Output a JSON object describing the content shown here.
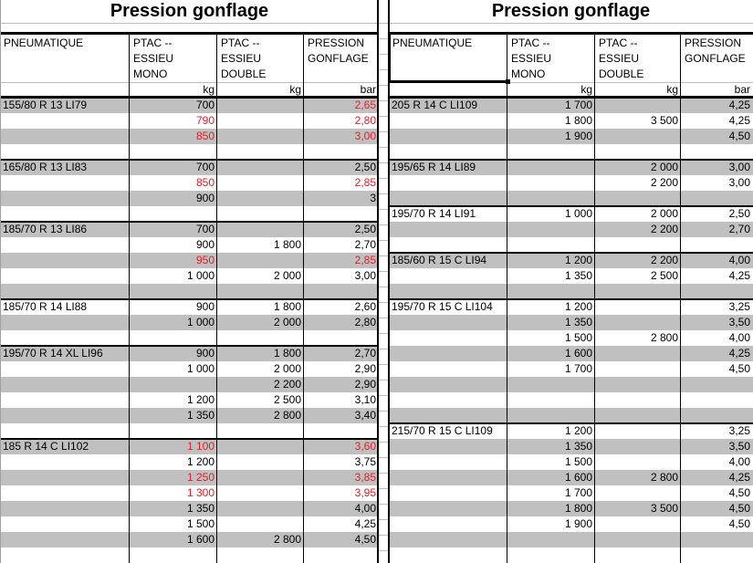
{
  "colors": {
    "row_gray": "#c0c0c0",
    "highlight_red": "#e0202a"
  },
  "left": {
    "title": "Pression gonflage",
    "headers": [
      "PNEUMATIQUE",
      "PTAC  --\nESSIEU\nMONO",
      "PTAC  --\nESSIEU\nDOUBLE",
      "PRESSION\nGONFLAGE"
    ],
    "units": [
      "",
      "kg",
      "kg",
      "bar"
    ],
    "rows": [
      {
        "tire": "155/80 R 13 LI79",
        "mono": "700",
        "double": "",
        "pressure": "2,65",
        "red": [
          "pressure"
        ],
        "group_start": true
      },
      {
        "tire": "",
        "mono": "790",
        "double": "",
        "pressure": "2,80",
        "red": [
          "mono",
          "pressure"
        ]
      },
      {
        "tire": "",
        "mono": "850",
        "double": "",
        "pressure": "3,00",
        "red": [
          "mono",
          "pressure"
        ]
      },
      {
        "tire": "",
        "mono": "",
        "double": "",
        "pressure": ""
      },
      {
        "tire": "165/80 R 13 LI83",
        "mono": "700",
        "double": "",
        "pressure": "2,50",
        "group_start": true
      },
      {
        "tire": "",
        "mono": "850",
        "double": "",
        "pressure": "2,85",
        "red": [
          "mono",
          "pressure"
        ]
      },
      {
        "tire": "",
        "mono": "900",
        "double": "",
        "pressure": "3"
      },
      {
        "tire": "",
        "mono": "",
        "double": "",
        "pressure": ""
      },
      {
        "tire": "185/70 R 13 LI86",
        "mono": "700",
        "double": "",
        "pressure": "2,50",
        "group_start": true
      },
      {
        "tire": "",
        "mono": "900",
        "double": "1 800",
        "pressure": "2,70"
      },
      {
        "tire": "",
        "mono": "950",
        "double": "",
        "pressure": "2,85",
        "red": [
          "mono",
          "pressure"
        ]
      },
      {
        "tire": "",
        "mono": "1 000",
        "double": "2 000",
        "pressure": "3,00"
      },
      {
        "tire": "",
        "mono": "",
        "double": "",
        "pressure": ""
      },
      {
        "tire": "185/70 R 14 LI88",
        "mono": "900",
        "double": "1 800",
        "pressure": "2,60",
        "group_start": true
      },
      {
        "tire": "",
        "mono": "1 000",
        "double": "2 000",
        "pressure": "2,80"
      },
      {
        "tire": "",
        "mono": "",
        "double": "",
        "pressure": ""
      },
      {
        "tire": "195/70 R 14 XL LI96",
        "mono": "900",
        "double": "1 800",
        "pressure": "2,70",
        "group_start": true
      },
      {
        "tire": "",
        "mono": "1 000",
        "double": "2 000",
        "pressure": "2,90"
      },
      {
        "tire": "",
        "mono": "",
        "double": "2 200",
        "pressure": "2,90"
      },
      {
        "tire": "",
        "mono": "1 200",
        "double": "2 500",
        "pressure": "3,10"
      },
      {
        "tire": "",
        "mono": "1 350",
        "double": "2 800",
        "pressure": "3,40"
      },
      {
        "tire": "",
        "mono": "",
        "double": "",
        "pressure": ""
      },
      {
        "tire": "185 R 14 C LI102",
        "mono": "1 100",
        "double": "",
        "pressure": "3,60",
        "red": [
          "mono",
          "pressure"
        ],
        "group_start": true
      },
      {
        "tire": "",
        "mono": "1 200",
        "double": "",
        "pressure": "3,75"
      },
      {
        "tire": "",
        "mono": "1 250",
        "double": "",
        "pressure": "3,85",
        "red": [
          "mono",
          "pressure"
        ]
      },
      {
        "tire": "",
        "mono": "1 300",
        "double": "",
        "pressure": "3,95",
        "red": [
          "mono",
          "pressure"
        ]
      },
      {
        "tire": "",
        "mono": "1 350",
        "double": "",
        "pressure": "4,00"
      },
      {
        "tire": "",
        "mono": "1 500",
        "double": "",
        "pressure": "4,25"
      },
      {
        "tire": "",
        "mono": "1 600",
        "double": "2 800",
        "pressure": "4,50"
      },
      {
        "tire": "",
        "mono": "",
        "double": "",
        "pressure": ""
      }
    ]
  },
  "right": {
    "title": "Pression gonflage",
    "headers": [
      "PNEUMATIQUE",
      "PTAC  --\nESSIEU\nMONO",
      "PTAC  --\nESSIEU\nDOUBLE",
      "PRESSION\nGONFLAGE"
    ],
    "units": [
      "",
      "kg",
      "kg",
      "bar"
    ],
    "rows": [
      {
        "tire": "205 R 14 C LI109",
        "mono": "1 700",
        "double": "",
        "pressure": "4,25",
        "group_start": true
      },
      {
        "tire": "",
        "mono": "1 800",
        "double": "3 500",
        "pressure": "4,25"
      },
      {
        "tire": "",
        "mono": "1 900",
        "double": "",
        "pressure": "4,50"
      },
      {
        "tire": "",
        "mono": "",
        "double": "",
        "pressure": ""
      },
      {
        "tire": "195/65 R 14 LI89",
        "mono": "",
        "double": "2 000",
        "pressure": "3,00",
        "group_start": true
      },
      {
        "tire": "",
        "mono": "",
        "double": "2 200",
        "pressure": "3,00"
      },
      {
        "tire": "",
        "mono": "",
        "double": "",
        "pressure": ""
      },
      {
        "tire": "195/70 R 14 LI91",
        "mono": "1 000",
        "double": "2 000",
        "pressure": "2,50",
        "group_start": true
      },
      {
        "tire": "",
        "mono": "",
        "double": "2 200",
        "pressure": "2,70"
      },
      {
        "tire": "",
        "mono": "",
        "double": "",
        "pressure": ""
      },
      {
        "tire": "185/60 R 15 C LI94",
        "mono": "1 200",
        "double": "2 200",
        "pressure": "4,00",
        "group_start": true
      },
      {
        "tire": "",
        "mono": "1 350",
        "double": "2 500",
        "pressure": "4,25"
      },
      {
        "tire": "",
        "mono": "",
        "double": "",
        "pressure": ""
      },
      {
        "tire": "195/70 R 15 C LI104",
        "mono": "1 200",
        "double": "",
        "pressure": "3,25",
        "group_start": true
      },
      {
        "tire": "",
        "mono": "1 350",
        "double": "",
        "pressure": "3,50"
      },
      {
        "tire": "",
        "mono": "1 500",
        "double": "2 800",
        "pressure": "4,00"
      },
      {
        "tire": "",
        "mono": "1 600",
        "double": "",
        "pressure": "4,25"
      },
      {
        "tire": "",
        "mono": "1 700",
        "double": "",
        "pressure": "4,50"
      },
      {
        "tire": "",
        "mono": "",
        "double": "",
        "pressure": ""
      },
      {
        "tire": "",
        "mono": "",
        "double": "",
        "pressure": ""
      },
      {
        "tire": "",
        "mono": "",
        "double": "",
        "pressure": ""
      },
      {
        "tire": "215/70 R 15 C LI109",
        "mono": "1 200",
        "double": "",
        "pressure": "3,25",
        "group_start": true
      },
      {
        "tire": "",
        "mono": "1 350",
        "double": "",
        "pressure": "3,50"
      },
      {
        "tire": "",
        "mono": "1 500",
        "double": "",
        "pressure": "4,00"
      },
      {
        "tire": "",
        "mono": "1 600",
        "double": "2 800",
        "pressure": "4,25"
      },
      {
        "tire": "",
        "mono": "1 700",
        "double": "",
        "pressure": "4,50"
      },
      {
        "tire": "",
        "mono": "1 800",
        "double": "3 500",
        "pressure": "4,50"
      },
      {
        "tire": "",
        "mono": "1 900",
        "double": "",
        "pressure": "4,50"
      },
      {
        "tire": "",
        "mono": "",
        "double": "",
        "pressure": ""
      },
      {
        "tire": "",
        "mono": "",
        "double": "",
        "pressure": ""
      }
    ]
  }
}
